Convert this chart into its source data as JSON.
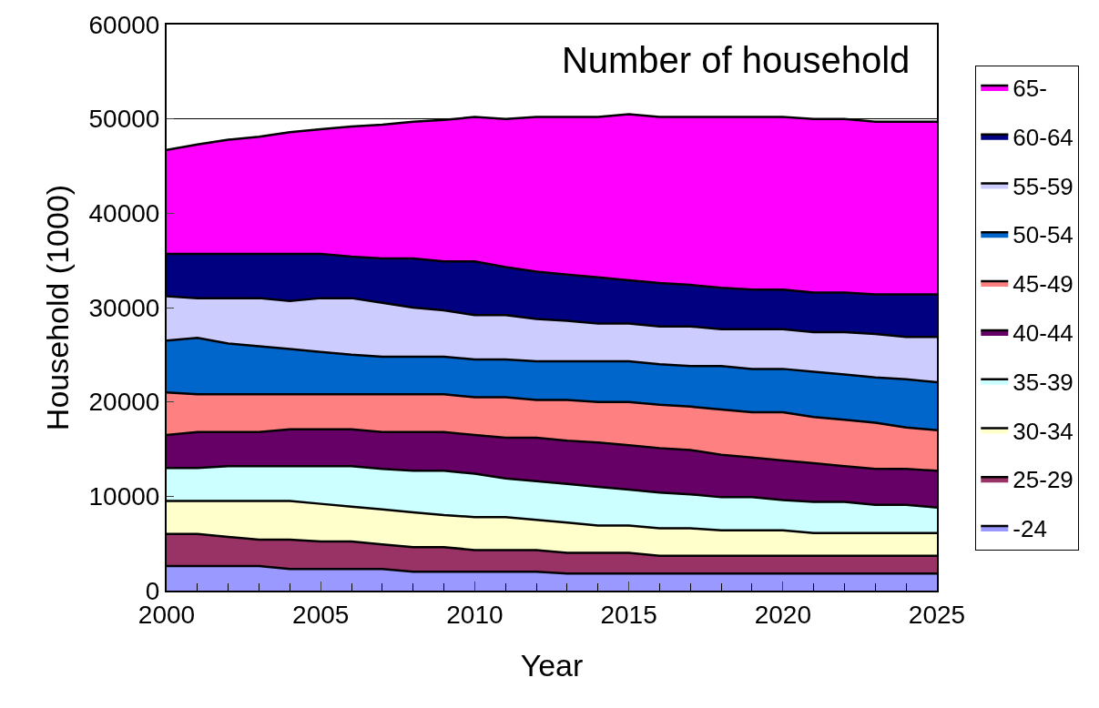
{
  "chart_data": {
    "type": "area",
    "stacked": true,
    "title": "Number of household",
    "xlabel": "Year",
    "ylabel": "Household (1000)",
    "x": [
      2000,
      2001,
      2002,
      2003,
      2004,
      2005,
      2006,
      2007,
      2008,
      2009,
      2010,
      2011,
      2012,
      2013,
      2014,
      2015,
      2016,
      2017,
      2018,
      2019,
      2020,
      2021,
      2022,
      2023,
      2024,
      2025
    ],
    "xlim": [
      2000,
      2025
    ],
    "xticks": [
      2000,
      {
        "value": 2001,
        "label": null
      },
      {
        "value": 2002,
        "label": null
      },
      {
        "value": 2003,
        "label": null
      },
      {
        "value": 2004,
        "label": null
      },
      2005,
      {
        "value": 2006,
        "label": null
      },
      {
        "value": 2007,
        "label": null
      },
      {
        "value": 2008,
        "label": null
      },
      {
        "value": 2009,
        "label": null
      },
      2010,
      {
        "value": 2011,
        "label": null
      },
      {
        "value": 2012,
        "label": null
      },
      {
        "value": 2013,
        "label": null
      },
      {
        "value": 2014,
        "label": null
      },
      2015,
      {
        "value": 2016,
        "label": null
      },
      {
        "value": 2017,
        "label": null
      },
      {
        "value": 2018,
        "label": null
      },
      {
        "value": 2019,
        "label": null
      },
      2020,
      {
        "value": 2021,
        "label": null
      },
      {
        "value": 2022,
        "label": null
      },
      {
        "value": 2023,
        "label": null
      },
      {
        "value": 2024,
        "label": null
      },
      2025
    ],
    "ylim": [
      0,
      60000
    ],
    "yticks": [
      0,
      10000,
      20000,
      30000,
      40000,
      50000,
      60000
    ],
    "grid": "y",
    "legend": "right",
    "series": [
      {
        "name": "-24",
        "color": "#9999ff",
        "values": [
          2600,
          2600,
          2600,
          2600,
          2300,
          2300,
          2300,
          2300,
          2000,
          2000,
          2000,
          2000,
          2000,
          1800,
          1800,
          1800,
          1800,
          1800,
          1800,
          1800,
          1800,
          1800,
          1800,
          1800,
          1800,
          1800
        ]
      },
      {
        "name": "25-29",
        "color": "#993366",
        "values": [
          3400,
          3400,
          3100,
          2800,
          3100,
          2900,
          2900,
          2600,
          2600,
          2600,
          2300,
          2300,
          2300,
          2200,
          2200,
          2200,
          1900,
          1900,
          1900,
          1900,
          1900,
          1900,
          1900,
          1900,
          1900,
          1900
        ]
      },
      {
        "name": "30-34",
        "color": "#ffffcc",
        "values": [
          3500,
          3500,
          3800,
          4100,
          4100,
          4000,
          3700,
          3700,
          3700,
          3400,
          3500,
          3500,
          3200,
          3200,
          2900,
          2900,
          2900,
          2900,
          2700,
          2700,
          2700,
          2400,
          2400,
          2400,
          2400,
          2400
        ]
      },
      {
        "name": "35-39",
        "color": "#ccffff",
        "values": [
          3500,
          3500,
          3700,
          3700,
          3700,
          4000,
          4300,
          4300,
          4400,
          4700,
          4600,
          4100,
          4100,
          4100,
          4100,
          3800,
          3800,
          3600,
          3500,
          3500,
          3200,
          3300,
          3300,
          3000,
          3000,
          2700
        ]
      },
      {
        "name": "40-44",
        "color": "#660066",
        "values": [
          3500,
          3800,
          3600,
          3600,
          3900,
          3900,
          3900,
          3900,
          4100,
          4100,
          4100,
          4300,
          4600,
          4600,
          4700,
          4700,
          4700,
          4700,
          4500,
          4200,
          4200,
          4100,
          3800,
          3800,
          3800,
          3900
        ]
      },
      {
        "name": "45-49",
        "color": "#ff8080",
        "values": [
          4500,
          4000,
          4000,
          4000,
          3700,
          3700,
          3700,
          4000,
          4000,
          4000,
          4000,
          4300,
          4000,
          4300,
          4300,
          4600,
          4600,
          4600,
          4800,
          4800,
          5100,
          4900,
          4900,
          4900,
          4400,
          4300
        ]
      },
      {
        "name": "50-54",
        "color": "#0066cc",
        "values": [
          5500,
          6000,
          5400,
          5100,
          4800,
          4500,
          4200,
          4000,
          4000,
          4000,
          4000,
          4000,
          4100,
          4100,
          4300,
          4300,
          4300,
          4300,
          4600,
          4600,
          4600,
          4800,
          4800,
          4800,
          5100,
          5100
        ]
      },
      {
        "name": "55-59",
        "color": "#ccccff",
        "values": [
          4700,
          4200,
          4800,
          5100,
          5100,
          5700,
          6000,
          5700,
          5200,
          4900,
          4700,
          4700,
          4500,
          4300,
          4000,
          4000,
          4000,
          4200,
          3900,
          4200,
          4200,
          4200,
          4500,
          4600,
          4500,
          4800
        ]
      },
      {
        "name": "60-64",
        "color": "#000080",
        "values": [
          4500,
          4700,
          4700,
          4700,
          5000,
          4700,
          4400,
          4700,
          5200,
          5200,
          5700,
          5100,
          5000,
          4900,
          4900,
          4600,
          4600,
          4400,
          4400,
          4200,
          4200,
          4200,
          4200,
          4200,
          4500,
          4500
        ]
      },
      {
        "name": "65-",
        "color": "#ff00ff",
        "values": [
          11000,
          11600,
          12100,
          12400,
          12900,
          13200,
          13800,
          14200,
          14500,
          15000,
          15300,
          15700,
          16400,
          16700,
          17000,
          17600,
          17600,
          17800,
          18100,
          18300,
          18300,
          18400,
          18400,
          18300,
          18300,
          18300
        ]
      }
    ]
  }
}
